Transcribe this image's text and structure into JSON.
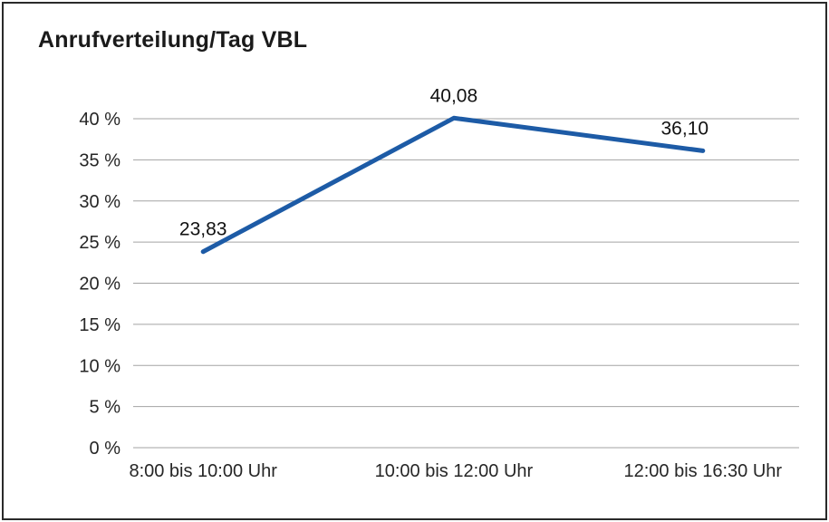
{
  "chart_data": {
    "type": "line",
    "title": "Anrufverteilung/Tag VBL",
    "categories": [
      "8:00 bis 10:00 Uhr",
      "10:00 bis 12:00 Uhr",
      "12:00 bis 16:30 Uhr"
    ],
    "values": [
      23.83,
      40.08,
      36.1
    ],
    "data_labels": [
      "23,83",
      "40,08",
      "36,10"
    ],
    "xlabel": "",
    "ylabel": "",
    "ylim": [
      0,
      40
    ],
    "ytick_step": 5,
    "ytick_labels": [
      "0 %",
      "5 %",
      "10 %",
      "15 %",
      "20 %",
      "25 %",
      "30 %",
      "35 %",
      "40 %"
    ],
    "grid": true,
    "legend": "none",
    "colors": {
      "line": "#1d5ba6",
      "grid": "#a3a3a3",
      "text": "#262626",
      "data_label": "#111111",
      "frame_border": "#2a2a2a"
    }
  }
}
